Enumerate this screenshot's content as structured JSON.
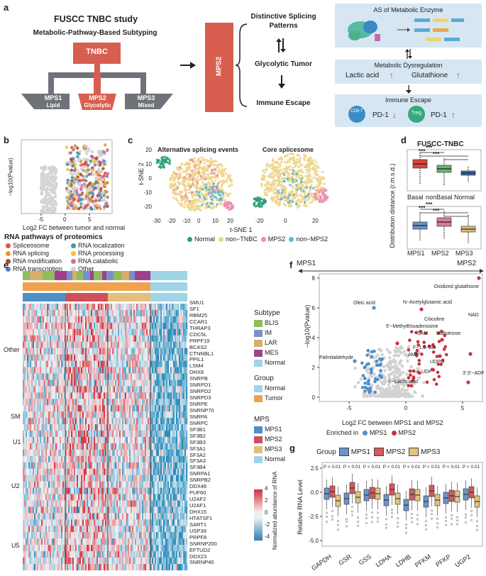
{
  "panel_a": {
    "label": "a",
    "title": "FUSCC TNBC study",
    "subtitle": "Metabolic-Pathway-Based Subtyping",
    "tnbc": "TNBC",
    "subtypes": [
      {
        "name": "MPS1",
        "desc": "Lipid"
      },
      {
        "name": "MPS2",
        "desc": "Glycolytic"
      },
      {
        "name": "MPS3",
        "desc": "Mixed"
      }
    ],
    "mps2_vertical": "MPS2",
    "features": [
      "Distinctive Splicing Patterns",
      "Glycolytic Tumor",
      "Immune Escape"
    ],
    "mechanism_title": "AS of Metabolic Enzyme",
    "dysregulation_title": "Metabolic Dysregulation",
    "lactic": "Lactic acid",
    "glutathione": "Glutathione",
    "immune_title": "Immune Escape",
    "cd8": "CD8 T",
    "treg": "Treg",
    "pd1": "PD-1",
    "colors": {
      "red": "#d85e4f",
      "grey": "#6f7278",
      "blue_box": "#d6e6f3"
    }
  },
  "panel_b": {
    "label": "b",
    "ylabel": "−log10(Pvalue)",
    "xlabel": "Log2 FC between tumor and normal",
    "legend_title": "RNA pathways of proteomics",
    "legend": [
      {
        "name": "Spliceosome",
        "color": "#e0524a"
      },
      {
        "name": "RNA localization",
        "color": "#3c9d8f"
      },
      {
        "name": "RNA splicing",
        "color": "#e39b2c"
      },
      {
        "name": "RNA processing",
        "color": "#efc048"
      },
      {
        "name": "RNA modification",
        "color": "#a0522d"
      },
      {
        "name": "RNA catabolic",
        "color": "#d36bb0"
      },
      {
        "name": "RNA transcription",
        "color": "#5a7fc2"
      },
      {
        "name": "Other",
        "color": "#cfcfcf"
      }
    ],
    "xticks": [
      "-5",
      "0",
      "5"
    ]
  },
  "panel_c": {
    "label": "c",
    "titles": [
      "Alternative splicing events",
      "Core splicesome"
    ],
    "ylabel": "t-SNE 2",
    "xlabel": "t-SNE 1",
    "xticks_left": [
      "-30",
      "-20",
      "-10",
      "0",
      "10",
      "20"
    ],
    "xticks_right": [
      "-20",
      "0",
      "20"
    ],
    "yticks": [
      "20",
      "10",
      "0",
      "-10",
      "-20"
    ],
    "legend": [
      {
        "name": "Normal",
        "color": "#2e9c7a"
      },
      {
        "name": "non−TNBC",
        "color": "#eed58a"
      },
      {
        "name": "MPS2",
        "color": "#ec8fae"
      },
      {
        "name": "non−MPS2",
        "color": "#5fb7d8"
      }
    ]
  },
  "panel_d": {
    "label": "d",
    "title": "FUSCC-TNBC",
    "ylabel": "Distribution distance (r.m.s.d.)",
    "top_groups": [
      "Basal",
      "nonBasal",
      "Normal"
    ],
    "bottom_groups": [
      "MPS1",
      "MPS2",
      "MPS3"
    ],
    "yticks_top": [
      "1.0",
      "0.8",
      "0.6",
      "0.4",
      "0.2"
    ],
    "yticks_bottom": [
      "1.2",
      "1.0",
      "0.8",
      "0.6",
      "0.4"
    ],
    "sig": "***"
  },
  "panel_e": {
    "label": "e",
    "row_groups": [
      "Other",
      "SM",
      "U1",
      "U2",
      "U5"
    ],
    "genes": [
      "SMU1",
      "SF1",
      "RBM25",
      "CCAR1",
      "THRAP3",
      "CDC5L",
      "PRPF19",
      "BCAS2",
      "CTNNBL1",
      "PPIL1",
      "LSM4",
      "DHX8",
      "SNRPB",
      "SNRPD1",
      "SNRPD2",
      "SNRPD3",
      "SNRPE",
      "SNRNP70",
      "SNRPA",
      "SNRPC",
      "SF3B1",
      "SF3B2",
      "SF3B3",
      "SF3A1",
      "SF3A2",
      "SF3A3",
      "SF3B4",
      "SNRPA1",
      "SNRPB2",
      "DDX46",
      "PUF60",
      "U2AF2",
      "U2AF1",
      "DHX15",
      "HTATSF1",
      "SART1",
      "USP39",
      "PRPF8",
      "SNRNP200",
      "EFTUD2",
      "DDX23",
      "SNRNP40"
    ],
    "legend_subtype_title": "Subtype",
    "subtypes": [
      {
        "name": "BLIS",
        "color": "#8fbd5c"
      },
      {
        "name": "IM",
        "color": "#7b8fc9"
      },
      {
        "name": "LAR",
        "color": "#d9ad6a"
      },
      {
        "name": "MES",
        "color": "#a0408f"
      },
      {
        "name": "Normal",
        "color": "#9fd5e5"
      }
    ],
    "legend_group_title": "Group",
    "groups": [
      {
        "name": "Normal",
        "color": "#9fd5e5"
      },
      {
        "name": "Tumor",
        "color": "#f0a24f"
      }
    ],
    "legend_mps_title": "MPS",
    "mps": [
      {
        "name": "MPS1",
        "color": "#4f8fc7"
      },
      {
        "name": "MPS2",
        "color": "#cf4f5b"
      },
      {
        "name": "MPS3",
        "color": "#e3c07a"
      },
      {
        "name": "Normal",
        "color": "#9fd5e5"
      }
    ],
    "colorbar_title": "Normalized abundance of RNA",
    "colorbar_ticks": [
      "4",
      "2",
      "0",
      "-2",
      "-4"
    ]
  },
  "panel_f": {
    "label": "f",
    "left_tag": "MPS1",
    "right_tag": "MPS2",
    "ylabel": "−log10(Pvalue)",
    "xlabel": "Log2 FC between MPS1 and MPS2",
    "enriched_label": "Enriched in",
    "enriched": [
      {
        "name": "MPS1",
        "color": "#4f8fc7"
      },
      {
        "name": "MPS2",
        "color": "#c8323f"
      }
    ],
    "xticks": [
      "-5",
      "0",
      "5"
    ],
    "yticks": [
      "8",
      "6",
      "4",
      "2",
      "0"
    ],
    "annotations": [
      "Oxidized glutathione",
      "Oleic acid",
      "N−Acetylglutamic acid",
      "Citicoline",
      "NAD",
      "5'−Methylthioadenosine",
      "SAM",
      "Maltotriose",
      "Palmitaldehyde",
      "AMP",
      "F−1,6−BP",
      "UDPG",
      "UDP",
      "3',5'−ADP",
      "L−Lactic acid"
    ]
  },
  "panel_g": {
    "label": "g",
    "group_label": "Group",
    "legend": [
      {
        "name": "MPS1",
        "color": "#6d94c8"
      },
      {
        "name": "MPS2",
        "color": "#d5595a"
      },
      {
        "name": "MPS3",
        "color": "#e4c27a"
      }
    ],
    "ylabel": "Relative RNA Level",
    "yticks": [
      "2.5",
      "0.0",
      "-2.5",
      "-5.0"
    ],
    "genes": [
      "GAPDH",
      "GSR",
      "GSS",
      "LDHA",
      "LDHB",
      "PFKM",
      "PFKP",
      "UGP2"
    ],
    "pvalues": [
      "P < 0.01",
      "P < 0.01",
      "P < 0.01",
      "P < 0.01",
      "P < 0.01",
      "P < 0.01",
      "P < 0.01",
      "P < 0.01"
    ]
  }
}
